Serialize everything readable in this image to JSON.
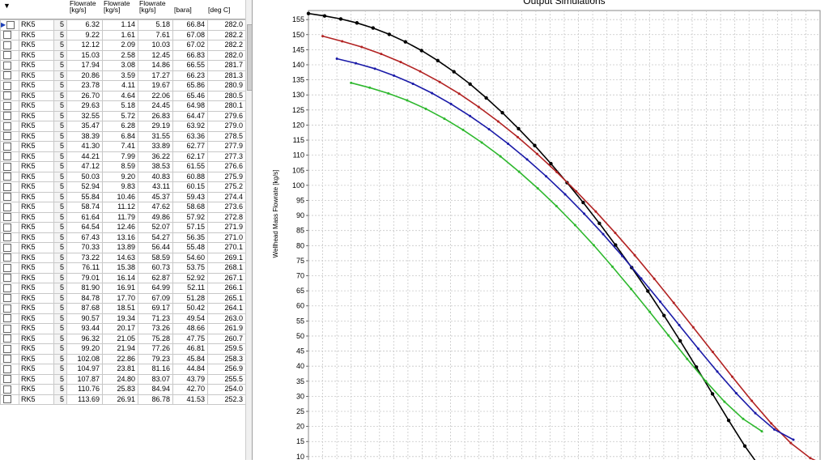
{
  "table": {
    "header": {
      "col_oil": "Flowrate\n[kg/s]",
      "col_gas": "Flowrate\n[kg/s]",
      "col_total": "Flowrate\n[kg/s]",
      "col_pressure": "[bara]",
      "col_temp": "[deg C]"
    },
    "rows": [
      [
        "RK5",
        "5",
        "6.32",
        "1.14",
        "5.18",
        "66.84",
        "282.0"
      ],
      [
        "RK5",
        "5",
        "9.22",
        "1.61",
        "7.61",
        "67.08",
        "282.2"
      ],
      [
        "RK5",
        "5",
        "12.12",
        "2.09",
        "10.03",
        "67.02",
        "282.2"
      ],
      [
        "RK5",
        "5",
        "15.03",
        "2.58",
        "12.45",
        "66.83",
        "282.0"
      ],
      [
        "RK5",
        "5",
        "17.94",
        "3.08",
        "14.86",
        "66.55",
        "281.7"
      ],
      [
        "RK5",
        "5",
        "20.86",
        "3.59",
        "17.27",
        "66.23",
        "281.3"
      ],
      [
        "RK5",
        "5",
        "23.78",
        "4.11",
        "19.67",
        "65.86",
        "280.9"
      ],
      [
        "RK5",
        "5",
        "26.70",
        "4.64",
        "22.06",
        "65.46",
        "280.5"
      ],
      [
        "RK5",
        "5",
        "29.63",
        "5.18",
        "24.45",
        "64.98",
        "280.1"
      ],
      [
        "RK5",
        "5",
        "32.55",
        "5.72",
        "26.83",
        "64.47",
        "279.6"
      ],
      [
        "RK5",
        "5",
        "35.47",
        "6.28",
        "29.19",
        "63.92",
        "279.0"
      ],
      [
        "RK5",
        "5",
        "38.39",
        "6.84",
        "31.55",
        "63.36",
        "278.5"
      ],
      [
        "RK5",
        "5",
        "41.30",
        "7.41",
        "33.89",
        "62.77",
        "277.9"
      ],
      [
        "RK5",
        "5",
        "44.21",
        "7.99",
        "36.22",
        "62.17",
        "277.3"
      ],
      [
        "RK5",
        "5",
        "47.12",
        "8.59",
        "38.53",
        "61.55",
        "276.6"
      ],
      [
        "RK5",
        "5",
        "50.03",
        "9.20",
        "40.83",
        "60.88",
        "275.9"
      ],
      [
        "RK5",
        "5",
        "52.94",
        "9.83",
        "43.11",
        "60.15",
        "275.2"
      ],
      [
        "RK5",
        "5",
        "55.84",
        "10.46",
        "45.37",
        "59.43",
        "274.4"
      ],
      [
        "RK5",
        "5",
        "58.74",
        "11.12",
        "47.62",
        "58.68",
        "273.6"
      ],
      [
        "RK5",
        "5",
        "61.64",
        "11.79",
        "49.86",
        "57.92",
        "272.8"
      ],
      [
        "RK5",
        "5",
        "64.54",
        "12.46",
        "52.07",
        "57.15",
        "271.9"
      ],
      [
        "RK5",
        "5",
        "67.43",
        "13.16",
        "54.27",
        "56.35",
        "271.0"
      ],
      [
        "RK5",
        "5",
        "70.33",
        "13.89",
        "56.44",
        "55.48",
        "270.1"
      ],
      [
        "RK5",
        "5",
        "73.22",
        "14.63",
        "58.59",
        "54.60",
        "269.1"
      ],
      [
        "RK5",
        "5",
        "76.11",
        "15.38",
        "60.73",
        "53.75",
        "268.1"
      ],
      [
        "RK5",
        "5",
        "79.01",
        "16.14",
        "62.87",
        "52.92",
        "267.1"
      ],
      [
        "RK5",
        "5",
        "81.90",
        "16.91",
        "64.99",
        "52.11",
        "266.1"
      ],
      [
        "RK5",
        "5",
        "84.78",
        "17.70",
        "67.09",
        "51.28",
        "265.1"
      ],
      [
        "RK5",
        "5",
        "87.68",
        "18.51",
        "69.17",
        "50.42",
        "264.1"
      ],
      [
        "RK5",
        "5",
        "90.57",
        "19.34",
        "71.23",
        "49.54",
        "263.0"
      ],
      [
        "RK5",
        "5",
        "93.44",
        "20.17",
        "73.26",
        "48.66",
        "261.9"
      ],
      [
        "RK5",
        "5",
        "96.32",
        "21.05",
        "75.28",
        "47.75",
        "260.7"
      ],
      [
        "RK5",
        "5",
        "99.20",
        "21.94",
        "77.26",
        "46.81",
        "259.5"
      ],
      [
        "RK5",
        "5",
        "102.08",
        "22.86",
        "79.23",
        "45.84",
        "258.3"
      ],
      [
        "RK5",
        "5",
        "104.97",
        "23.81",
        "81.16",
        "44.84",
        "256.9"
      ],
      [
        "RK5",
        "5",
        "107.87",
        "24.80",
        "83.07",
        "43.79",
        "255.5"
      ],
      [
        "RK5",
        "5",
        "110.76",
        "25.83",
        "84.94",
        "42.70",
        "254.0"
      ],
      [
        "RK5",
        "5",
        "113.69",
        "26.91",
        "86.78",
        "41.53",
        "252.3"
      ]
    ]
  },
  "chart_data": {
    "type": "line",
    "title": "Output Simulations",
    "ylabel": "Wellhead Mass Flowrate [kg/s]",
    "ylim": [
      7,
      158
    ],
    "yticks": [
      10,
      15,
      20,
      25,
      30,
      35,
      40,
      45,
      50,
      55,
      60,
      65,
      70,
      75,
      80,
      85,
      90,
      95,
      100,
      105,
      110,
      115,
      120,
      125,
      130,
      135,
      140,
      145,
      150,
      155
    ],
    "x_count": 36,
    "series": [
      {
        "color": "#000000",
        "values": [
          157,
          156.2,
          155.2,
          153.9,
          152.2,
          150.1,
          147.6,
          144.7,
          141.4,
          137.7,
          133.6,
          129,
          124.1,
          118.8,
          113.2,
          107.2,
          100.9,
          94.3,
          87.4,
          80.2,
          72.7,
          64.9,
          56.8,
          48.4,
          39.7,
          30.8,
          22,
          13.5,
          6
        ]
      },
      {
        "color": "#b22222",
        "values": [
          149.5,
          147.8,
          145.9,
          143.6,
          140.9,
          137.8,
          134.3,
          130.4,
          126,
          121.2,
          116,
          110.4,
          104.4,
          98,
          91.3,
          84.2,
          76.8,
          69,
          61,
          52.9,
          44.7,
          36.5,
          28.5,
          21,
          14.5,
          9.5,
          6.5
        ]
      },
      {
        "color": "#1a1aa8",
        "values": [
          142,
          140.5,
          138.7,
          136.4,
          133.7,
          130.6,
          127,
          123,
          118.6,
          113.8,
          108.6,
          103,
          97,
          90.6,
          83.8,
          76.6,
          69.1,
          61.4,
          53.6,
          45.8,
          38.2,
          31,
          24.4,
          19,
          15.6
        ]
      },
      {
        "color": "#2eb82e",
        "values": [
          134,
          132.4,
          130.5,
          128.2,
          125.4,
          122.1,
          118.4,
          114.2,
          109.6,
          104.5,
          99,
          93.1,
          86.8,
          80.1,
          73,
          65.6,
          58,
          50.2,
          42.4,
          35,
          28.2,
          22.5,
          18.4
        ]
      }
    ]
  },
  "colors": {
    "grid_border": "#c8c8c8",
    "selection_marker": "#1c3fb8"
  }
}
